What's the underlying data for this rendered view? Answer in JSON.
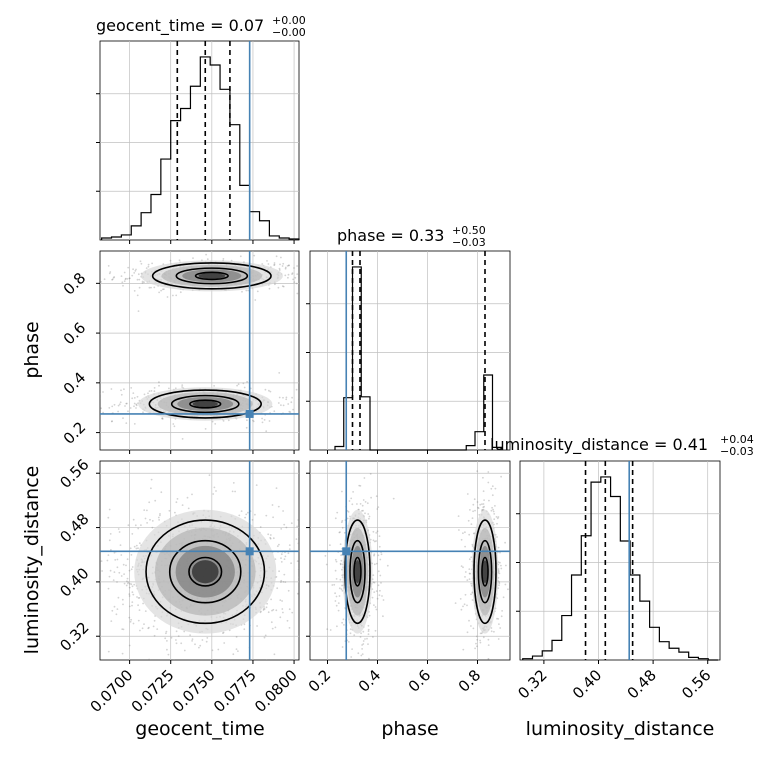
{
  "chart_data": {
    "type": "corner",
    "parameters": [
      "geocent_time",
      "phase",
      "luminosity_distance"
    ],
    "titles": [
      {
        "text": "geocent_time = 0.07",
        "plus": "+0.00",
        "minus": "−0.00"
      },
      {
        "text": "phase = 0.33",
        "plus": "+0.50",
        "minus": "−0.03"
      },
      {
        "text": "luminosity_distance = 0.41",
        "plus": "+0.04",
        "minus": "−0.03"
      }
    ],
    "ranges": {
      "geocent_time": [
        0.0682,
        0.0803
      ],
      "phase": [
        0.13,
        0.93
      ],
      "luminosity_distance": [
        0.285,
        0.578
      ]
    },
    "ticks": {
      "geocent_time": [
        0.07,
        0.0725,
        0.075,
        0.0775,
        0.08
      ],
      "phase": [
        0.2,
        0.4,
        0.6,
        0.8
      ],
      "luminosity_distance": [
        0.32,
        0.4,
        0.48,
        0.56
      ]
    },
    "tick_labels": {
      "geocent_time": [
        "0.0700",
        "0.0725",
        "0.0750",
        "0.0775",
        "0.0800"
      ],
      "phase": [
        "0.2",
        "0.4",
        "0.6",
        "0.8"
      ],
      "luminosity_distance": [
        "0.32",
        "0.40",
        "0.48",
        "0.56"
      ]
    },
    "truths": {
      "geocent_time": 0.0773,
      "phase": 0.275,
      "luminosity_distance": 0.445
    },
    "quantiles": {
      "geocent_time": [
        0.0729,
        0.0746,
        0.0761
      ],
      "phase": [
        0.3,
        0.33,
        0.83
      ],
      "luminosity_distance": [
        0.381,
        0.41,
        0.45
      ]
    },
    "hist_geocent_time": {
      "edges": [
        0.0683,
        0.0689,
        0.0695,
        0.0701,
        0.0707,
        0.0713,
        0.0719,
        0.0725,
        0.0731,
        0.0737,
        0.0743,
        0.0749,
        0.0755,
        0.0761,
        0.0767,
        0.0773,
        0.0779,
        0.0785,
        0.0791,
        0.0797,
        0.0803
      ],
      "counts": [
        2,
        3,
        5,
        14,
        27,
        45,
        80,
        118,
        130,
        152,
        181,
        173,
        149,
        114,
        54,
        28,
        19,
        4,
        2,
        1
      ]
    },
    "hist_phase": {
      "edges": [
        0.23,
        0.265,
        0.3,
        0.335,
        0.37,
        0.405,
        0.44,
        0.475,
        0.51,
        0.545,
        0.58,
        0.615,
        0.65,
        0.685,
        0.72,
        0.755,
        0.79,
        0.825,
        0.86,
        0.895
      ],
      "counts": [
        4,
        60,
        210,
        61,
        0,
        0,
        0,
        0,
        0,
        0,
        0,
        0,
        0,
        0,
        0,
        5,
        21,
        86,
        3
      ]
    },
    "hist_luminosity_distance": {
      "edges": [
        0.289,
        0.3033,
        0.3176,
        0.3319,
        0.3462,
        0.3605,
        0.3748,
        0.3891,
        0.4034,
        0.4177,
        0.432,
        0.4463,
        0.4606,
        0.4749,
        0.4892,
        0.5035,
        0.5178,
        0.5321,
        0.5464,
        0.5607,
        0.575
      ],
      "counts": [
        1,
        3,
        7,
        15,
        34,
        65,
        95,
        136,
        140,
        125,
        91,
        65,
        45,
        25,
        14,
        9,
        6,
        2,
        1,
        0
      ]
    },
    "clusters": {
      "geocent_time_vs_phase": [
        {
          "mean": [
            0.075,
            0.83
          ],
          "sd": [
            0.0018,
            0.026
          ]
        },
        {
          "mean": [
            0.0746,
            0.315
          ],
          "sd": [
            0.0017,
            0.028
          ]
        }
      ],
      "geocent_time_vs_luminosity_distance": [
        {
          "mean": [
            0.0746,
            0.415
          ],
          "sd": [
            0.0018,
            0.038
          ]
        }
      ],
      "phase_vs_luminosity_distance": [
        {
          "mean": [
            0.32,
            0.415
          ],
          "sd": [
            0.025,
            0.038
          ]
        },
        {
          "mean": [
            0.83,
            0.415
          ],
          "sd": [
            0.022,
            0.038
          ]
        }
      ]
    },
    "colors": {
      "truth": "#4682b4",
      "hist": "#000000",
      "grid": "#c0c0c0",
      "points": "#808080"
    },
    "grid": true
  }
}
